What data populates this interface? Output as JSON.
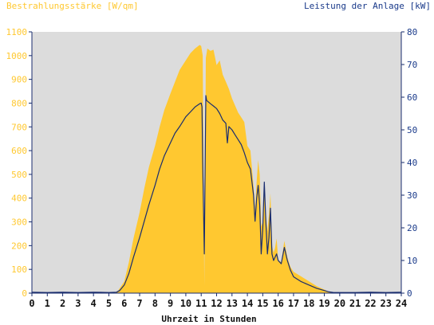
{
  "chart_data": {
    "type": "area",
    "title_left": "Bestrahlungsstärke [W/qm]",
    "title_right": "Leistung der Anlage [kW]",
    "xlabel": "Uhrzeit in Stunden",
    "x_ticks": [
      "0",
      "1",
      "2",
      "3",
      "4",
      "5",
      "6",
      "7",
      "8",
      "9",
      "10",
      "11",
      "12",
      "13",
      "14",
      "15",
      "16",
      "17",
      "18",
      "19",
      "20",
      "21",
      "22",
      "23",
      "24"
    ],
    "xlim": [
      0,
      24
    ],
    "ylim_left": [
      0,
      1100
    ],
    "ylim_right": [
      0,
      80
    ],
    "y_ticks_left": [
      "0",
      "100",
      "200",
      "300",
      "400",
      "500",
      "600",
      "700",
      "800",
      "900",
      "1000",
      "1100"
    ],
    "y_ticks_right": [
      "0",
      "10",
      "20",
      "30",
      "40",
      "50",
      "60",
      "70",
      "80"
    ],
    "colors": {
      "irradiance": "#ffc830",
      "power": "#1a2d6e",
      "left_axis_text": "#ffc830",
      "right_axis_text": "#1a3a8a",
      "plot_bg": "#dcdcdc",
      "axis": "#1a2d6e"
    },
    "series": [
      {
        "axis": "left",
        "style": "area",
        "x": [
          0,
          5.3,
          5.6,
          6.0,
          6.3,
          6.6,
          7.0,
          7.3,
          7.6,
          8.0,
          8.3,
          8.6,
          9.0,
          9.3,
          9.6,
          10.0,
          10.3,
          10.6,
          10.9,
          11.0,
          11.1,
          11.2,
          11.3,
          11.4,
          11.6,
          11.8,
          12.0,
          12.2,
          12.4,
          12.6,
          12.8,
          13.0,
          13.2,
          13.4,
          13.6,
          13.8,
          14.0,
          14.2,
          14.4,
          14.5,
          14.6,
          14.7,
          14.8,
          14.9,
          15.0,
          15.1,
          15.2,
          15.3,
          15.4,
          15.5,
          15.6,
          15.7,
          15.8,
          15.9,
          16.0,
          16.2,
          16.4,
          16.6,
          16.8,
          17.0,
          17.5,
          18.0,
          18.5,
          19.0,
          19.3,
          19.6,
          24
        ],
        "values": [
          0,
          0,
          10,
          50,
          130,
          230,
          340,
          440,
          530,
          620,
          700,
          770,
          840,
          890,
          940,
          980,
          1010,
          1030,
          1045,
          1040,
          1000,
          30,
          990,
          1030,
          1020,
          1025,
          960,
          980,
          920,
          890,
          860,
          820,
          790,
          760,
          740,
          720,
          620,
          600,
          450,
          350,
          470,
          560,
          500,
          280,
          300,
          450,
          340,
          260,
          330,
          420,
          200,
          170,
          190,
          230,
          140,
          130,
          220,
          150,
          110,
          90,
          70,
          50,
          30,
          15,
          5,
          0,
          0
        ]
      },
      {
        "axis": "right",
        "style": "line",
        "x": [
          0,
          1,
          2,
          3,
          4,
          5,
          5.5,
          5.7,
          6.0,
          6.3,
          6.6,
          7.0,
          7.3,
          7.6,
          8.0,
          8.3,
          8.6,
          9.0,
          9.3,
          9.6,
          10.0,
          10.3,
          10.6,
          10.9,
          11.0,
          11.05,
          11.1,
          11.2,
          11.3,
          11.35,
          11.4,
          11.6,
          11.8,
          12.0,
          12.2,
          12.4,
          12.6,
          12.7,
          12.8,
          13.0,
          13.2,
          13.4,
          13.6,
          13.8,
          14.0,
          14.2,
          14.4,
          14.5,
          14.6,
          14.7,
          14.8,
          14.9,
          15.0,
          15.1,
          15.2,
          15.3,
          15.4,
          15.5,
          15.6,
          15.7,
          15.8,
          15.9,
          16.0,
          16.2,
          16.4,
          16.6,
          16.8,
          17.0,
          17.5,
          18.0,
          18.5,
          19.0,
          19.3,
          19.6,
          20,
          21,
          22,
          23,
          24
        ],
        "values": [
          0.3,
          0.2,
          0.3,
          0.2,
          0.3,
          0.2,
          0.3,
          0.8,
          2.5,
          6,
          11,
          17,
          22,
          27,
          33,
          38,
          42,
          46,
          49,
          51,
          54,
          55.5,
          57,
          58,
          58.2,
          57,
          40,
          12,
          60.5,
          59,
          58.8,
          58,
          57.3,
          56.5,
          55,
          53,
          52,
          46,
          51,
          50,
          48.5,
          47,
          45.5,
          43,
          40,
          38,
          30,
          22,
          29,
          33,
          27,
          12,
          20,
          34,
          22,
          12,
          17,
          26,
          12,
          10,
          11,
          12,
          10,
          9,
          14,
          10,
          7,
          5,
          3.5,
          2.5,
          1.5,
          0.8,
          0.4,
          0.2,
          0.2,
          0.2,
          0.3,
          0.2,
          0.3
        ]
      }
    ]
  }
}
